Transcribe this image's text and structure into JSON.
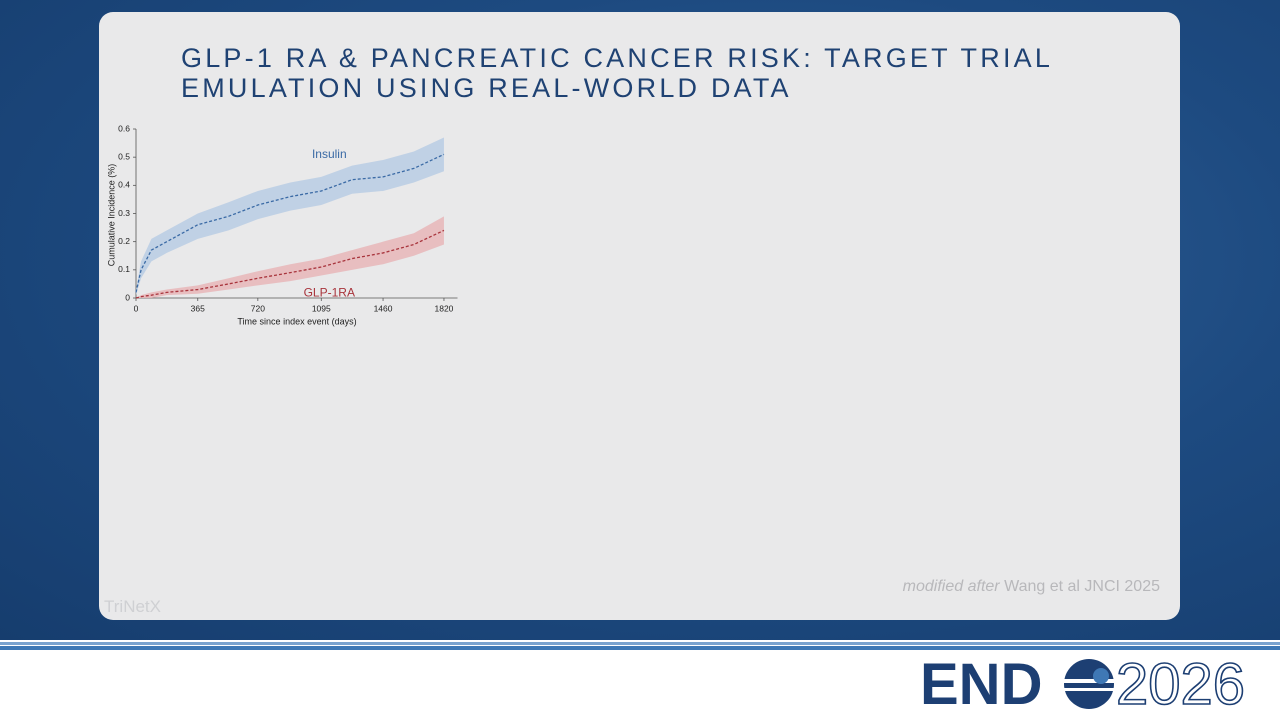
{
  "slide": {
    "title_lines": [
      "GLP-1 RA & PANCREATIC CANCER RISK: TARGET TRIAL",
      "EMULATION USING REAL-WORLD DATA"
    ],
    "citation": {
      "emphasis": "modified after",
      "text": "Wang et al JNCI 2025"
    },
    "watermark": "TriNetX",
    "logo": {
      "text": "END",
      "year": "2026"
    }
  },
  "chart_data": {
    "type": "line",
    "y_label": "Cumulative Incidence (%)",
    "x_label": "Time since index event (days)",
    "x": [
      0,
      30,
      91,
      182,
      365,
      547,
      720,
      912,
      1095,
      1277,
      1460,
      1642,
      1820
    ],
    "series": [
      {
        "name": "Insulin",
        "color": "#3a6aa5",
        "band_color": "#b9cde4",
        "values": [
          0.02,
          0.1,
          0.17,
          0.2,
          0.26,
          0.29,
          0.33,
          0.36,
          0.38,
          0.42,
          0.43,
          0.46,
          0.51
        ],
        "lower": [
          0.01,
          0.07,
          0.13,
          0.16,
          0.21,
          0.24,
          0.28,
          0.31,
          0.33,
          0.37,
          0.38,
          0.41,
          0.45
        ],
        "upper": [
          0.03,
          0.13,
          0.21,
          0.24,
          0.3,
          0.34,
          0.38,
          0.41,
          0.43,
          0.47,
          0.49,
          0.52,
          0.57
        ]
      },
      {
        "name": "GLP-1RA",
        "color": "#a8343c",
        "band_color": "#e8b6b8",
        "values": [
          0,
          0.005,
          0.01,
          0.02,
          0.03,
          0.05,
          0.07,
          0.09,
          0.11,
          0.14,
          0.16,
          0.19,
          0.24
        ],
        "lower": [
          0,
          0,
          0,
          0.01,
          0.015,
          0.03,
          0.045,
          0.06,
          0.08,
          0.1,
          0.12,
          0.15,
          0.19
        ],
        "upper": [
          0,
          0.01,
          0.02,
          0.03,
          0.045,
          0.07,
          0.095,
          0.12,
          0.14,
          0.17,
          0.2,
          0.23,
          0.29
        ]
      }
    ],
    "xlim": [
      0,
      1900
    ],
    "ylim": [
      0,
      0.6
    ],
    "xticks": [
      0,
      365,
      720,
      1095,
      1460,
      1820
    ],
    "yticks": [
      0,
      0.1,
      0.2,
      0.3,
      0.4,
      0.5,
      0.6
    ]
  }
}
